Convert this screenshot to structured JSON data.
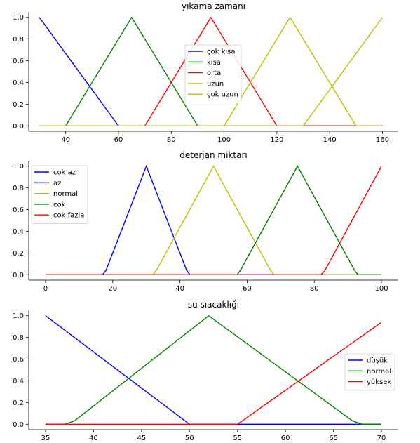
{
  "chart_data": [
    {
      "type": "line",
      "title": "yıkama zamanı",
      "xlabel": "",
      "ylabel": "",
      "xlim": [
        26,
        166
      ],
      "ylim": [
        -0.05,
        1.05
      ],
      "xticks": [
        "40",
        "60",
        "80",
        "100",
        "120",
        "140",
        "160"
      ],
      "xtick_values": [
        40,
        60,
        80,
        100,
        120,
        140,
        160
      ],
      "yticks": [
        "0.0",
        "0.2",
        "0.4",
        "0.6",
        "0.8",
        "1.0"
      ],
      "ytick_values": [
        0,
        0.2,
        0.4,
        0.6,
        0.8,
        1.0
      ],
      "grid": false,
      "legend_position": "center",
      "series": [
        {
          "name": "çok kısa",
          "color": "#0000ff",
          "x": [
            30,
            60,
            160
          ],
          "y": [
            1,
            0,
            0
          ]
        },
        {
          "name": "kısa",
          "color": "#008000",
          "x": [
            30,
            40,
            65,
            90,
            160
          ],
          "y": [
            0,
            0,
            1,
            0,
            0
          ]
        },
        {
          "name": "orta",
          "color": "#ff0000",
          "x": [
            30,
            70,
            95,
            120,
            160
          ],
          "y": [
            0,
            0,
            1,
            0,
            0
          ]
        },
        {
          "name": "uzun",
          "color": "#bfbf00",
          "x": [
            30,
            100,
            125,
            150,
            160
          ],
          "y": [
            0,
            0,
            1,
            0,
            0
          ]
        },
        {
          "name": "çok uzun",
          "color": "#bfbf00",
          "x": [
            30,
            130,
            160
          ],
          "y": [
            0,
            0,
            1
          ]
        }
      ]
    },
    {
      "type": "line",
      "title": "deterjan miktarı",
      "xlabel": "",
      "ylabel": "",
      "xlim": [
        -5,
        105
      ],
      "ylim": [
        -0.05,
        1.05
      ],
      "xticks": [
        "0",
        "20",
        "40",
        "60",
        "80",
        "100"
      ],
      "xtick_values": [
        0,
        20,
        40,
        60,
        80,
        100
      ],
      "yticks": [
        "0.0",
        "0.2",
        "0.4",
        "0.6",
        "0.8",
        "1.0"
      ],
      "ytick_values": [
        0,
        0.2,
        0.4,
        0.6,
        0.8,
        1.0
      ],
      "grid": false,
      "legend_position": "upper-left",
      "series": [
        {
          "name": "cok az",
          "color": "#0000ff",
          "x": [
            0,
            100
          ],
          "y": [
            0,
            0
          ]
        },
        {
          "name": "az",
          "color": "#0000ff",
          "x": [
            0,
            17,
            18,
            30,
            42,
            43,
            100
          ],
          "y": [
            0,
            0,
            0.04,
            1,
            0.04,
            0,
            0
          ]
        },
        {
          "name": "normal",
          "color": "#bfbf00",
          "x": [
            0,
            32,
            33,
            50,
            67,
            68,
            100
          ],
          "y": [
            0,
            0,
            0.04,
            1,
            0.04,
            0,
            0
          ]
        },
        {
          "name": "cok",
          "color": "#008000",
          "x": [
            0,
            57,
            58,
            75,
            92,
            93,
            100
          ],
          "y": [
            0,
            0,
            0.04,
            1,
            0.04,
            0,
            0
          ]
        },
        {
          "name": "cok fazla",
          "color": "#ff0000",
          "x": [
            0,
            82,
            83,
            100
          ],
          "y": [
            0,
            0,
            0.03,
            1
          ]
        }
      ]
    },
    {
      "type": "line",
      "title": "su sıacaklığı",
      "xlabel": "",
      "ylabel": "",
      "xlim": [
        33.25,
        71.75
      ],
      "ylim": [
        -0.05,
        1.05
      ],
      "xticks": [
        "35",
        "40",
        "45",
        "50",
        "55",
        "60",
        "65",
        "70"
      ],
      "xtick_values": [
        35,
        40,
        45,
        50,
        55,
        60,
        65,
        70
      ],
      "yticks": [
        "0.0",
        "0.2",
        "0.4",
        "0.6",
        "0.8",
        "1.0"
      ],
      "ytick_values": [
        0,
        0.2,
        0.4,
        0.6,
        0.8,
        1.0
      ],
      "grid": false,
      "legend_position": "center-right",
      "series": [
        {
          "name": "düşük",
          "color": "#0000ff",
          "x": [
            35,
            50,
            70
          ],
          "y": [
            1,
            0,
            0
          ]
        },
        {
          "name": "normal",
          "color": "#008000",
          "x": [
            35,
            37,
            38,
            52,
            67,
            68,
            70
          ],
          "y": [
            0,
            0,
            0.03,
            1,
            0.03,
            0,
            0
          ]
        },
        {
          "name": "yüksek",
          "color": "#ff0000",
          "x": [
            35,
            55,
            70
          ],
          "y": [
            0,
            0,
            0.94
          ]
        }
      ]
    }
  ]
}
